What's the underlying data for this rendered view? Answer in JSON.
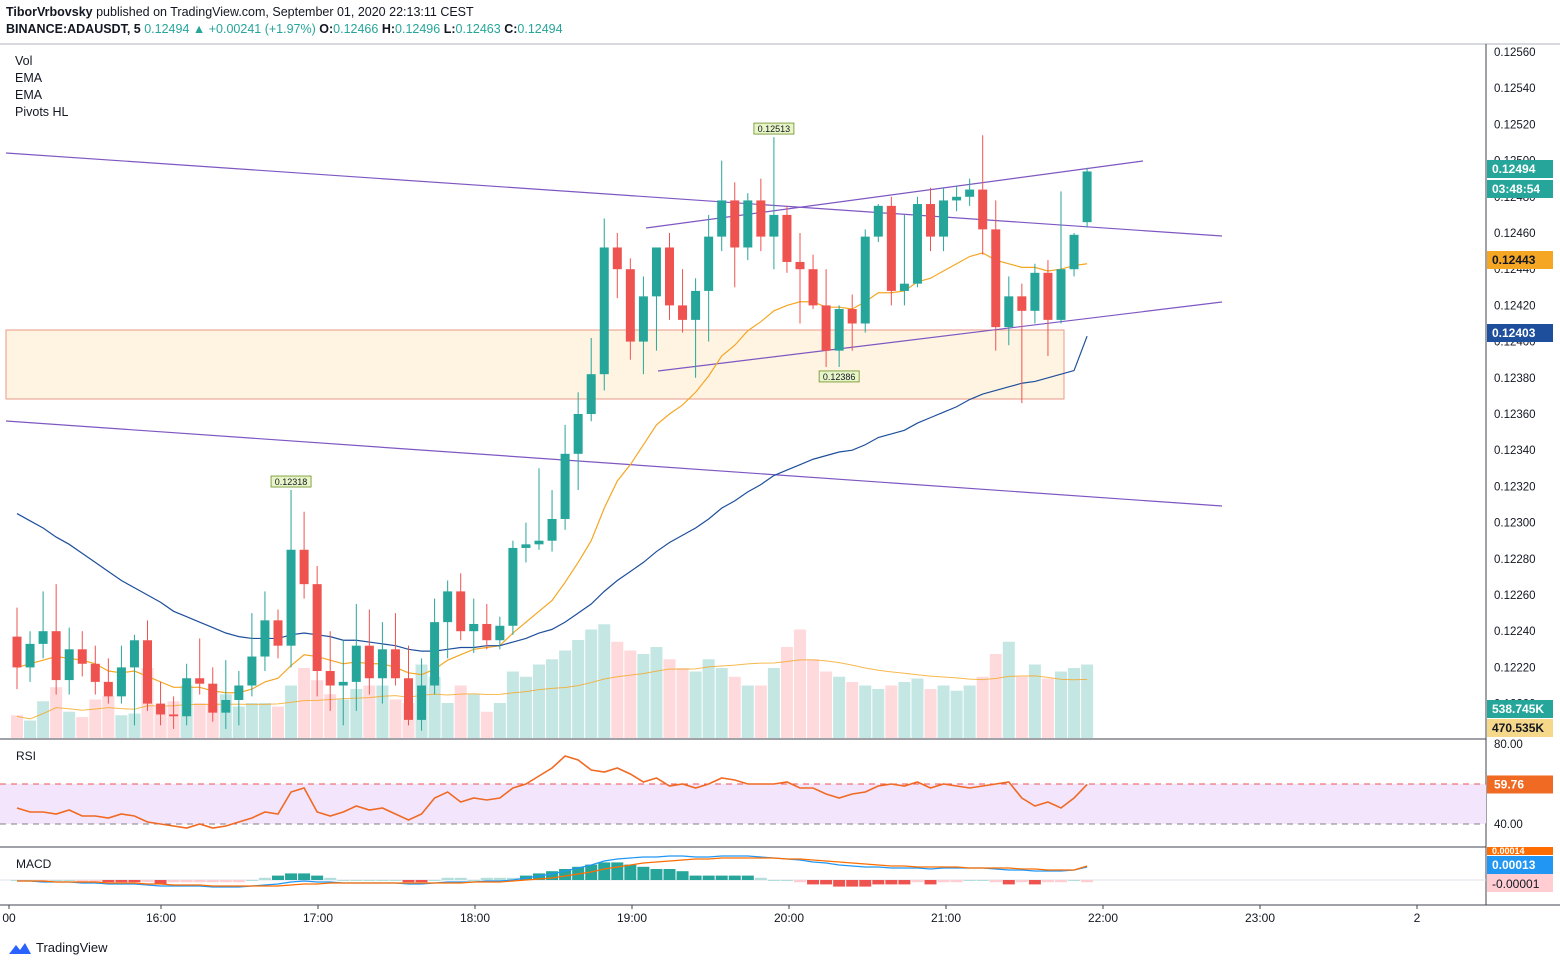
{
  "header": {
    "author": "TiborVrbovsky",
    "published_text": "published on TradingView.com, September 01, 2020 22:13:11 CEST",
    "symbol": "BINANCE:ADAUSDT, 5",
    "last": "0.12494",
    "change": "+0.00241 (+1.97%)",
    "o_label": "O:",
    "o": "0.12466",
    "h_label": "H:",
    "h": "0.12496",
    "l_label": "L:",
    "l": "0.12463",
    "c_label": "C:",
    "c": "0.12494"
  },
  "legend": [
    "Vol",
    "EMA",
    "EMA",
    "Pivots HL"
  ],
  "footer": {
    "brand": "TradingView"
  },
  "colors": {
    "up": "#26a69a",
    "down": "#ef5350",
    "ema_fast": "#f5a623",
    "ema_slow": "#1e4f9c",
    "trend": "#7e57c2",
    "rsi": "#f06a24"
  },
  "chart_data": {
    "type": "candlestick",
    "symbol": "BINANCE:ADAUSDT",
    "interval": "5",
    "x_tick_labels": [
      "00",
      "16:00",
      "17:00",
      "18:00",
      "19:00",
      "20:00",
      "21:00",
      "22:00",
      "23:00",
      "2"
    ],
    "price_axis_ticks": [
      "0.12560",
      "0.12540",
      "0.12520",
      "0.12500",
      "0.12480",
      "0.12460",
      "0.12440",
      "0.12420",
      "0.12400",
      "0.12380",
      "0.12360",
      "0.12340",
      "0.12320",
      "0.12300",
      "0.12280",
      "0.12260",
      "0.12240",
      "0.12220",
      "0.12200"
    ],
    "ylim": [
      0.12195,
      0.12565
    ],
    "price_labels": {
      "last": "0.12494",
      "countdown": "03:48:54",
      "ema_fast": "0.12443",
      "ema_slow": "0.12403",
      "volume": "538.745K",
      "volume_ma": "470.535K"
    },
    "pivot_labels": [
      {
        "text": "0.12513",
        "time": "20:15",
        "price": 0.12513
      },
      {
        "text": "0.12386",
        "time": "20:40",
        "price": 0.12386
      },
      {
        "text": "0.12318",
        "time": "17:10",
        "price": 0.12318
      }
    ],
    "candles": [
      {
        "t": "15:25",
        "o": 0.12237,
        "h": 0.12253,
        "l": 0.12208,
        "c": 0.1222
      },
      {
        "t": "15:30",
        "o": 0.1222,
        "h": 0.1224,
        "l": 0.12212,
        "c": 0.12233
      },
      {
        "t": "15:35",
        "o": 0.12233,
        "h": 0.12262,
        "l": 0.12225,
        "c": 0.1224
      },
      {
        "t": "15:40",
        "o": 0.1224,
        "h": 0.12266,
        "l": 0.12205,
        "c": 0.12213
      },
      {
        "t": "15:45",
        "o": 0.12213,
        "h": 0.12242,
        "l": 0.12205,
        "c": 0.1223
      },
      {
        "t": "15:50",
        "o": 0.1223,
        "h": 0.1224,
        "l": 0.12215,
        "c": 0.12222
      },
      {
        "t": "15:55",
        "o": 0.12222,
        "h": 0.12232,
        "l": 0.12205,
        "c": 0.12212
      },
      {
        "t": "16:00",
        "o": 0.12212,
        "h": 0.12225,
        "l": 0.122,
        "c": 0.12204
      },
      {
        "t": "16:05",
        "o": 0.12204,
        "h": 0.12232,
        "l": 0.122,
        "c": 0.1222
      },
      {
        "t": "16:10",
        "o": 0.1222,
        "h": 0.12238,
        "l": 0.12188,
        "c": 0.12235
      },
      {
        "t": "16:15",
        "o": 0.12235,
        "h": 0.12246,
        "l": 0.12196,
        "c": 0.122
      },
      {
        "t": "16:20",
        "o": 0.122,
        "h": 0.12212,
        "l": 0.12188,
        "c": 0.12194
      },
      {
        "t": "16:25",
        "o": 0.12194,
        "h": 0.12204,
        "l": 0.12186,
        "c": 0.12193
      },
      {
        "t": "16:30",
        "o": 0.12193,
        "h": 0.12222,
        "l": 0.12188,
        "c": 0.12214
      },
      {
        "t": "16:35",
        "o": 0.12214,
        "h": 0.12236,
        "l": 0.12205,
        "c": 0.12211
      },
      {
        "t": "16:40",
        "o": 0.12211,
        "h": 0.1222,
        "l": 0.1219,
        "c": 0.12195
      },
      {
        "t": "16:45",
        "o": 0.12195,
        "h": 0.12224,
        "l": 0.12186,
        "c": 0.12202
      },
      {
        "t": "16:50",
        "o": 0.12202,
        "h": 0.12218,
        "l": 0.12188,
        "c": 0.1221
      },
      {
        "t": "16:55",
        "o": 0.1221,
        "h": 0.1225,
        "l": 0.12204,
        "c": 0.12226
      },
      {
        "t": "17:00",
        "o": 0.12226,
        "h": 0.12262,
        "l": 0.12218,
        "c": 0.12246
      },
      {
        "t": "17:05",
        "o": 0.12246,
        "h": 0.12252,
        "l": 0.12225,
        "c": 0.12232
      },
      {
        "t": "17:10",
        "o": 0.12232,
        "h": 0.12318,
        "l": 0.1222,
        "c": 0.12285
      },
      {
        "t": "17:15",
        "o": 0.12285,
        "h": 0.12306,
        "l": 0.12258,
        "c": 0.12266
      },
      {
        "t": "17:20",
        "o": 0.12266,
        "h": 0.12276,
        "l": 0.12204,
        "c": 0.12218
      },
      {
        "t": "17:25",
        "o": 0.12218,
        "h": 0.1224,
        "l": 0.12196,
        "c": 0.1221
      },
      {
        "t": "17:30",
        "o": 0.1221,
        "h": 0.12235,
        "l": 0.12188,
        "c": 0.12212
      },
      {
        "t": "17:35",
        "o": 0.12212,
        "h": 0.12255,
        "l": 0.12196,
        "c": 0.12232
      },
      {
        "t": "17:40",
        "o": 0.12232,
        "h": 0.12252,
        "l": 0.12205,
        "c": 0.12214
      },
      {
        "t": "17:45",
        "o": 0.12214,
        "h": 0.12245,
        "l": 0.122,
        "c": 0.1223
      },
      {
        "t": "17:50",
        "o": 0.1223,
        "h": 0.1225,
        "l": 0.1221,
        "c": 0.12214
      },
      {
        "t": "17:55",
        "o": 0.12214,
        "h": 0.12232,
        "l": 0.12188,
        "c": 0.12191
      },
      {
        "t": "18:00",
        "o": 0.12191,
        "h": 0.12225,
        "l": 0.12185,
        "c": 0.1221
      },
      {
        "t": "18:05",
        "o": 0.1221,
        "h": 0.12258,
        "l": 0.12205,
        "c": 0.12245
      },
      {
        "t": "18:10",
        "o": 0.12245,
        "h": 0.12268,
        "l": 0.12225,
        "c": 0.12262
      },
      {
        "t": "18:15",
        "o": 0.12262,
        "h": 0.12272,
        "l": 0.12235,
        "c": 0.1224
      },
      {
        "t": "18:20",
        "o": 0.1224,
        "h": 0.12258,
        "l": 0.12228,
        "c": 0.12244
      },
      {
        "t": "18:25",
        "o": 0.12244,
        "h": 0.12255,
        "l": 0.1223,
        "c": 0.12235
      },
      {
        "t": "18:30",
        "o": 0.12235,
        "h": 0.12248,
        "l": 0.1223,
        "c": 0.12243
      },
      {
        "t": "18:35",
        "o": 0.12243,
        "h": 0.1229,
        "l": 0.12238,
        "c": 0.12286
      },
      {
        "t": "18:40",
        "o": 0.12286,
        "h": 0.123,
        "l": 0.12278,
        "c": 0.12288
      },
      {
        "t": "18:45",
        "o": 0.12288,
        "h": 0.1233,
        "l": 0.12285,
        "c": 0.1229
      },
      {
        "t": "18:50",
        "o": 0.1229,
        "h": 0.12318,
        "l": 0.12284,
        "c": 0.12302
      },
      {
        "t": "18:55",
        "o": 0.12302,
        "h": 0.12354,
        "l": 0.12296,
        "c": 0.12338
      },
      {
        "t": "19:00",
        "o": 0.12338,
        "h": 0.12372,
        "l": 0.12318,
        "c": 0.1236
      },
      {
        "t": "19:05",
        "o": 0.1236,
        "h": 0.12402,
        "l": 0.12356,
        "c": 0.12382
      },
      {
        "t": "19:10",
        "o": 0.12382,
        "h": 0.12468,
        "l": 0.12373,
        "c": 0.12452
      },
      {
        "t": "19:15",
        "o": 0.12452,
        "h": 0.1246,
        "l": 0.12424,
        "c": 0.1244
      },
      {
        "t": "19:20",
        "o": 0.1244,
        "h": 0.12446,
        "l": 0.1239,
        "c": 0.124
      },
      {
        "t": "19:25",
        "o": 0.124,
        "h": 0.12436,
        "l": 0.12382,
        "c": 0.12425
      },
      {
        "t": "19:30",
        "o": 0.12425,
        "h": 0.1245,
        "l": 0.12395,
        "c": 0.12452
      },
      {
        "t": "19:35",
        "o": 0.12452,
        "h": 0.1246,
        "l": 0.12412,
        "c": 0.1242
      },
      {
        "t": "19:40",
        "o": 0.1242,
        "h": 0.1244,
        "l": 0.12405,
        "c": 0.12412
      },
      {
        "t": "19:45",
        "o": 0.12412,
        "h": 0.12435,
        "l": 0.1238,
        "c": 0.12428
      },
      {
        "t": "19:50",
        "o": 0.12428,
        "h": 0.1247,
        "l": 0.124,
        "c": 0.12458
      },
      {
        "t": "19:55",
        "o": 0.12458,
        "h": 0.125,
        "l": 0.1245,
        "c": 0.12478
      },
      {
        "t": "20:00",
        "o": 0.12478,
        "h": 0.12488,
        "l": 0.1243,
        "c": 0.12452
      },
      {
        "t": "20:05",
        "o": 0.12452,
        "h": 0.12482,
        "l": 0.12445,
        "c": 0.12478
      },
      {
        "t": "20:10",
        "o": 0.12478,
        "h": 0.1249,
        "l": 0.1245,
        "c": 0.12458
      },
      {
        "t": "20:15",
        "o": 0.12458,
        "h": 0.12513,
        "l": 0.1244,
        "c": 0.1247
      },
      {
        "t": "20:20",
        "o": 0.1247,
        "h": 0.12475,
        "l": 0.12438,
        "c": 0.12444
      },
      {
        "t": "20:25",
        "o": 0.12444,
        "h": 0.1246,
        "l": 0.1241,
        "c": 0.1244
      },
      {
        "t": "20:30",
        "o": 0.1244,
        "h": 0.12448,
        "l": 0.12418,
        "c": 0.1242
      },
      {
        "t": "20:35",
        "o": 0.1242,
        "h": 0.1244,
        "l": 0.12386,
        "c": 0.12395
      },
      {
        "t": "20:40",
        "o": 0.12395,
        "h": 0.1242,
        "l": 0.12386,
        "c": 0.12418
      },
      {
        "t": "20:45",
        "o": 0.12418,
        "h": 0.12426,
        "l": 0.12395,
        "c": 0.1241
      },
      {
        "t": "20:50",
        "o": 0.1241,
        "h": 0.12462,
        "l": 0.12405,
        "c": 0.12458
      },
      {
        "t": "20:55",
        "o": 0.12458,
        "h": 0.12476,
        "l": 0.12455,
        "c": 0.12475
      },
      {
        "t": "21:00",
        "o": 0.12475,
        "h": 0.1248,
        "l": 0.1242,
        "c": 0.12428
      },
      {
        "t": "21:05",
        "o": 0.12428,
        "h": 0.1247,
        "l": 0.1242,
        "c": 0.12432
      },
      {
        "t": "21:10",
        "o": 0.12432,
        "h": 0.1248,
        "l": 0.1243,
        "c": 0.12476
      },
      {
        "t": "21:15",
        "o": 0.12476,
        "h": 0.12485,
        "l": 0.1245,
        "c": 0.12458
      },
      {
        "t": "21:20",
        "o": 0.12458,
        "h": 0.12485,
        "l": 0.1245,
        "c": 0.12478
      },
      {
        "t": "21:25",
        "o": 0.12478,
        "h": 0.12486,
        "l": 0.12472,
        "c": 0.1248
      },
      {
        "t": "21:30",
        "o": 0.1248,
        "h": 0.1249,
        "l": 0.12475,
        "c": 0.12484
      },
      {
        "t": "21:35",
        "o": 0.12484,
        "h": 0.12514,
        "l": 0.12448,
        "c": 0.12462
      },
      {
        "t": "21:40",
        "o": 0.12462,
        "h": 0.12478,
        "l": 0.12395,
        "c": 0.12408
      },
      {
        "t": "21:45",
        "o": 0.12408,
        "h": 0.12436,
        "l": 0.12398,
        "c": 0.12425
      },
      {
        "t": "21:50",
        "o": 0.12425,
        "h": 0.12432,
        "l": 0.12366,
        "c": 0.12417
      },
      {
        "t": "21:55",
        "o": 0.12417,
        "h": 0.12443,
        "l": 0.1241,
        "c": 0.12438
      },
      {
        "t": "22:00",
        "o": 0.12438,
        "h": 0.12445,
        "l": 0.12392,
        "c": 0.12412
      },
      {
        "t": "22:05",
        "o": 0.12412,
        "h": 0.12483,
        "l": 0.1241,
        "c": 0.1244
      },
      {
        "t": "22:10",
        "o": 0.1244,
        "h": 0.1246,
        "l": 0.12436,
        "c": 0.12459
      },
      {
        "t": "22:15",
        "o": 0.12466,
        "h": 0.12496,
        "l": 0.12463,
        "c": 0.12494
      }
    ],
    "ema_fast": [
      0.1222,
      0.12222,
      0.12224,
      0.12226,
      0.12225,
      0.12224,
      0.12222,
      0.12218,
      0.12217,
      0.12218,
      0.12215,
      0.12212,
      0.12209,
      0.12209,
      0.12209,
      0.12207,
      0.12206,
      0.12206,
      0.12208,
      0.12212,
      0.12214,
      0.12221,
      0.12227,
      0.12226,
      0.12224,
      0.12222,
      0.12223,
      0.12222,
      0.12222,
      0.1222,
      0.12217,
      0.12216,
      0.12219,
      0.12224,
      0.12227,
      0.1223,
      0.12231,
      0.12232,
      0.12239,
      0.12245,
      0.12251,
      0.12257,
      0.12267,
      0.12278,
      0.1229,
      0.12308,
      0.12323,
      0.12332,
      0.12343,
      0.12354,
      0.1236,
      0.12365,
      0.12372,
      0.12381,
      0.12392,
      0.12398,
      0.12406,
      0.12411,
      0.12417,
      0.1242,
      0.12422,
      0.12422,
      0.12419,
      0.12419,
      0.12418,
      0.12422,
      0.12427,
      0.12427,
      0.12428,
      0.12433,
      0.12435,
      0.12439,
      0.12443,
      0.12447,
      0.12449,
      0.12445,
      0.12443,
      0.12441,
      0.12441,
      0.12439,
      0.1244,
      0.12442,
      0.12443
    ],
    "ema_slow": [
      0.12305,
      0.12301,
      0.12297,
      0.12292,
      0.12288,
      0.12283,
      0.12278,
      0.12273,
      0.12268,
      0.12264,
      0.1226,
      0.12256,
      0.12251,
      0.12248,
      0.12245,
      0.12242,
      0.12239,
      0.12237,
      0.12236,
      0.12236,
      0.12236,
      0.12238,
      0.12239,
      0.12238,
      0.12237,
      0.12235,
      0.12235,
      0.12234,
      0.12233,
      0.12232,
      0.1223,
      0.12229,
      0.12229,
      0.1223,
      0.12231,
      0.12231,
      0.12232,
      0.12232,
      0.12234,
      0.12236,
      0.12239,
      0.12241,
      0.12245,
      0.1225,
      0.12255,
      0.12262,
      0.12268,
      0.12273,
      0.12278,
      0.12284,
      0.12289,
      0.12293,
      0.12297,
      0.12302,
      0.12308,
      0.12312,
      0.12317,
      0.12321,
      0.12326,
      0.12329,
      0.12332,
      0.12335,
      0.12337,
      0.12339,
      0.1234,
      0.12343,
      0.12347,
      0.12349,
      0.12351,
      0.12355,
      0.12358,
      0.12361,
      0.12364,
      0.12368,
      0.12371,
      0.12373,
      0.12375,
      0.12377,
      0.12378,
      0.1238,
      0.12382,
      0.12384,
      0.12403
    ],
    "volume": [
      0.13,
      0.1,
      0.21,
      0.29,
      0.15,
      0.12,
      0.22,
      0.24,
      0.13,
      0.14,
      0.4,
      0.18,
      0.21,
      0.3,
      0.2,
      0.2,
      0.25,
      0.18,
      0.2,
      0.2,
      0.18,
      0.3,
      0.4,
      0.33,
      0.25,
      0.22,
      0.28,
      0.3,
      0.3,
      0.22,
      0.2,
      0.42,
      0.35,
      0.2,
      0.3,
      0.25,
      0.15,
      0.2,
      0.38,
      0.35,
      0.42,
      0.45,
      0.5,
      0.56,
      0.62,
      0.65,
      0.55,
      0.5,
      0.48,
      0.52,
      0.45,
      0.4,
      0.38,
      0.45,
      0.4,
      0.35,
      0.3,
      0.3,
      0.4,
      0.52,
      0.62,
      0.45,
      0.38,
      0.35,
      0.32,
      0.3,
      0.28,
      0.3,
      0.32,
      0.34,
      0.28,
      0.3,
      0.27,
      0.3,
      0.35,
      0.48,
      0.55,
      0.35,
      0.42,
      0.34,
      0.38,
      0.4,
      0.42
    ],
    "rsi": [
      48,
      46,
      46,
      45,
      47,
      44,
      44,
      43,
      45,
      44,
      41,
      40,
      39,
      38,
      40,
      38,
      39,
      41,
      43,
      46,
      45,
      56,
      58,
      46,
      44,
      46,
      49,
      47,
      48,
      45,
      42,
      45,
      53,
      56,
      51,
      53,
      52,
      53,
      58,
      60,
      64,
      68,
      74,
      72,
      67,
      66,
      68,
      65,
      61,
      63,
      59,
      60,
      58,
      60,
      63,
      62,
      60,
      60,
      60,
      61,
      58,
      58,
      55,
      53,
      55,
      56,
      59,
      60,
      59,
      61,
      58,
      60,
      59,
      58,
      59,
      60,
      61,
      53,
      49,
      51,
      48,
      53,
      59.76
    ],
    "macd_line": [
      -1e-05,
      -1e-05,
      -2e-05,
      -2e-05,
      -2e-05,
      -3e-05,
      -3e-05,
      -4e-05,
      -4e-05,
      -4e-05,
      -5e-05,
      -6e-05,
      -6e-05,
      -6e-05,
      -6e-05,
      -7e-05,
      -7e-05,
      -7e-05,
      -6e-05,
      -5e-05,
      -4e-05,
      -2e-05,
      -1e-05,
      -2e-05,
      -2e-05,
      -3e-05,
      -3e-05,
      -3e-05,
      -3e-05,
      -3e-05,
      -4e-05,
      -4e-05,
      -3e-05,
      -2e-05,
      -2e-05,
      -2e-05,
      -1e-05,
      -1e-05,
      0.0,
      2e-05,
      4e-05,
      6e-05,
      9e-05,
      0.00012,
      0.00015,
      0.00019,
      0.00021,
      0.00022,
      0.00023,
      0.00023,
      0.00024,
      0.00024,
      0.00023,
      0.00023,
      0.00024,
      0.00024,
      0.00024,
      0.00023,
      0.00022,
      0.00021,
      0.0002,
      0.00018,
      0.00017,
      0.00015,
      0.00014,
      0.00013,
      0.00013,
      0.00012,
      0.00012,
      0.00012,
      0.00011,
      0.00012,
      0.00012,
      0.00012,
      0.00012,
      0.00011,
      0.0001,
      0.0001,
      9e-05,
      9e-05,
      9e-05,
      0.0001,
      0.00013
    ],
    "macd_signal": [
      -1e-05,
      -1e-05,
      -1e-05,
      -2e-05,
      -2e-05,
      -2e-05,
      -2e-05,
      -3e-05,
      -3e-05,
      -3e-05,
      -4e-05,
      -4e-05,
      -5e-05,
      -5e-05,
      -5e-05,
      -6e-05,
      -6e-05,
      -6e-05,
      -6e-05,
      -6e-05,
      -6e-05,
      -5e-05,
      -4e-05,
      -4e-05,
      -3e-05,
      -3e-05,
      -3e-05,
      -3e-05,
      -3e-05,
      -3e-05,
      -3e-05,
      -3e-05,
      -3e-05,
      -3e-05,
      -3e-05,
      -2e-05,
      -2e-05,
      -2e-05,
      -1e-05,
      0.0,
      1e-05,
      2e-05,
      4e-05,
      6e-05,
      8e-05,
      0.00011,
      0.00013,
      0.00015,
      0.00017,
      0.00018,
      0.00019,
      0.0002,
      0.00021,
      0.00021,
      0.00022,
      0.00022,
      0.00022,
      0.00022,
      0.00022,
      0.00021,
      0.00021,
      0.0002,
      0.00019,
      0.00018,
      0.00017,
      0.00016,
      0.00015,
      0.00014,
      0.00014,
      0.00013,
      0.00013,
      0.00013,
      0.00013,
      0.00012,
      0.00012,
      0.00012,
      0.00012,
      0.00011,
      0.00011,
      0.0001,
      0.0001,
      0.0001,
      0.00014
    ],
    "macd_labels": {
      "line": "0.00013",
      "hist": "-0.00001",
      "top": "0.00014"
    },
    "rsi_axis_ticks": [
      "80.00",
      "40.00"
    ],
    "rsi_value_label": "59.76"
  }
}
